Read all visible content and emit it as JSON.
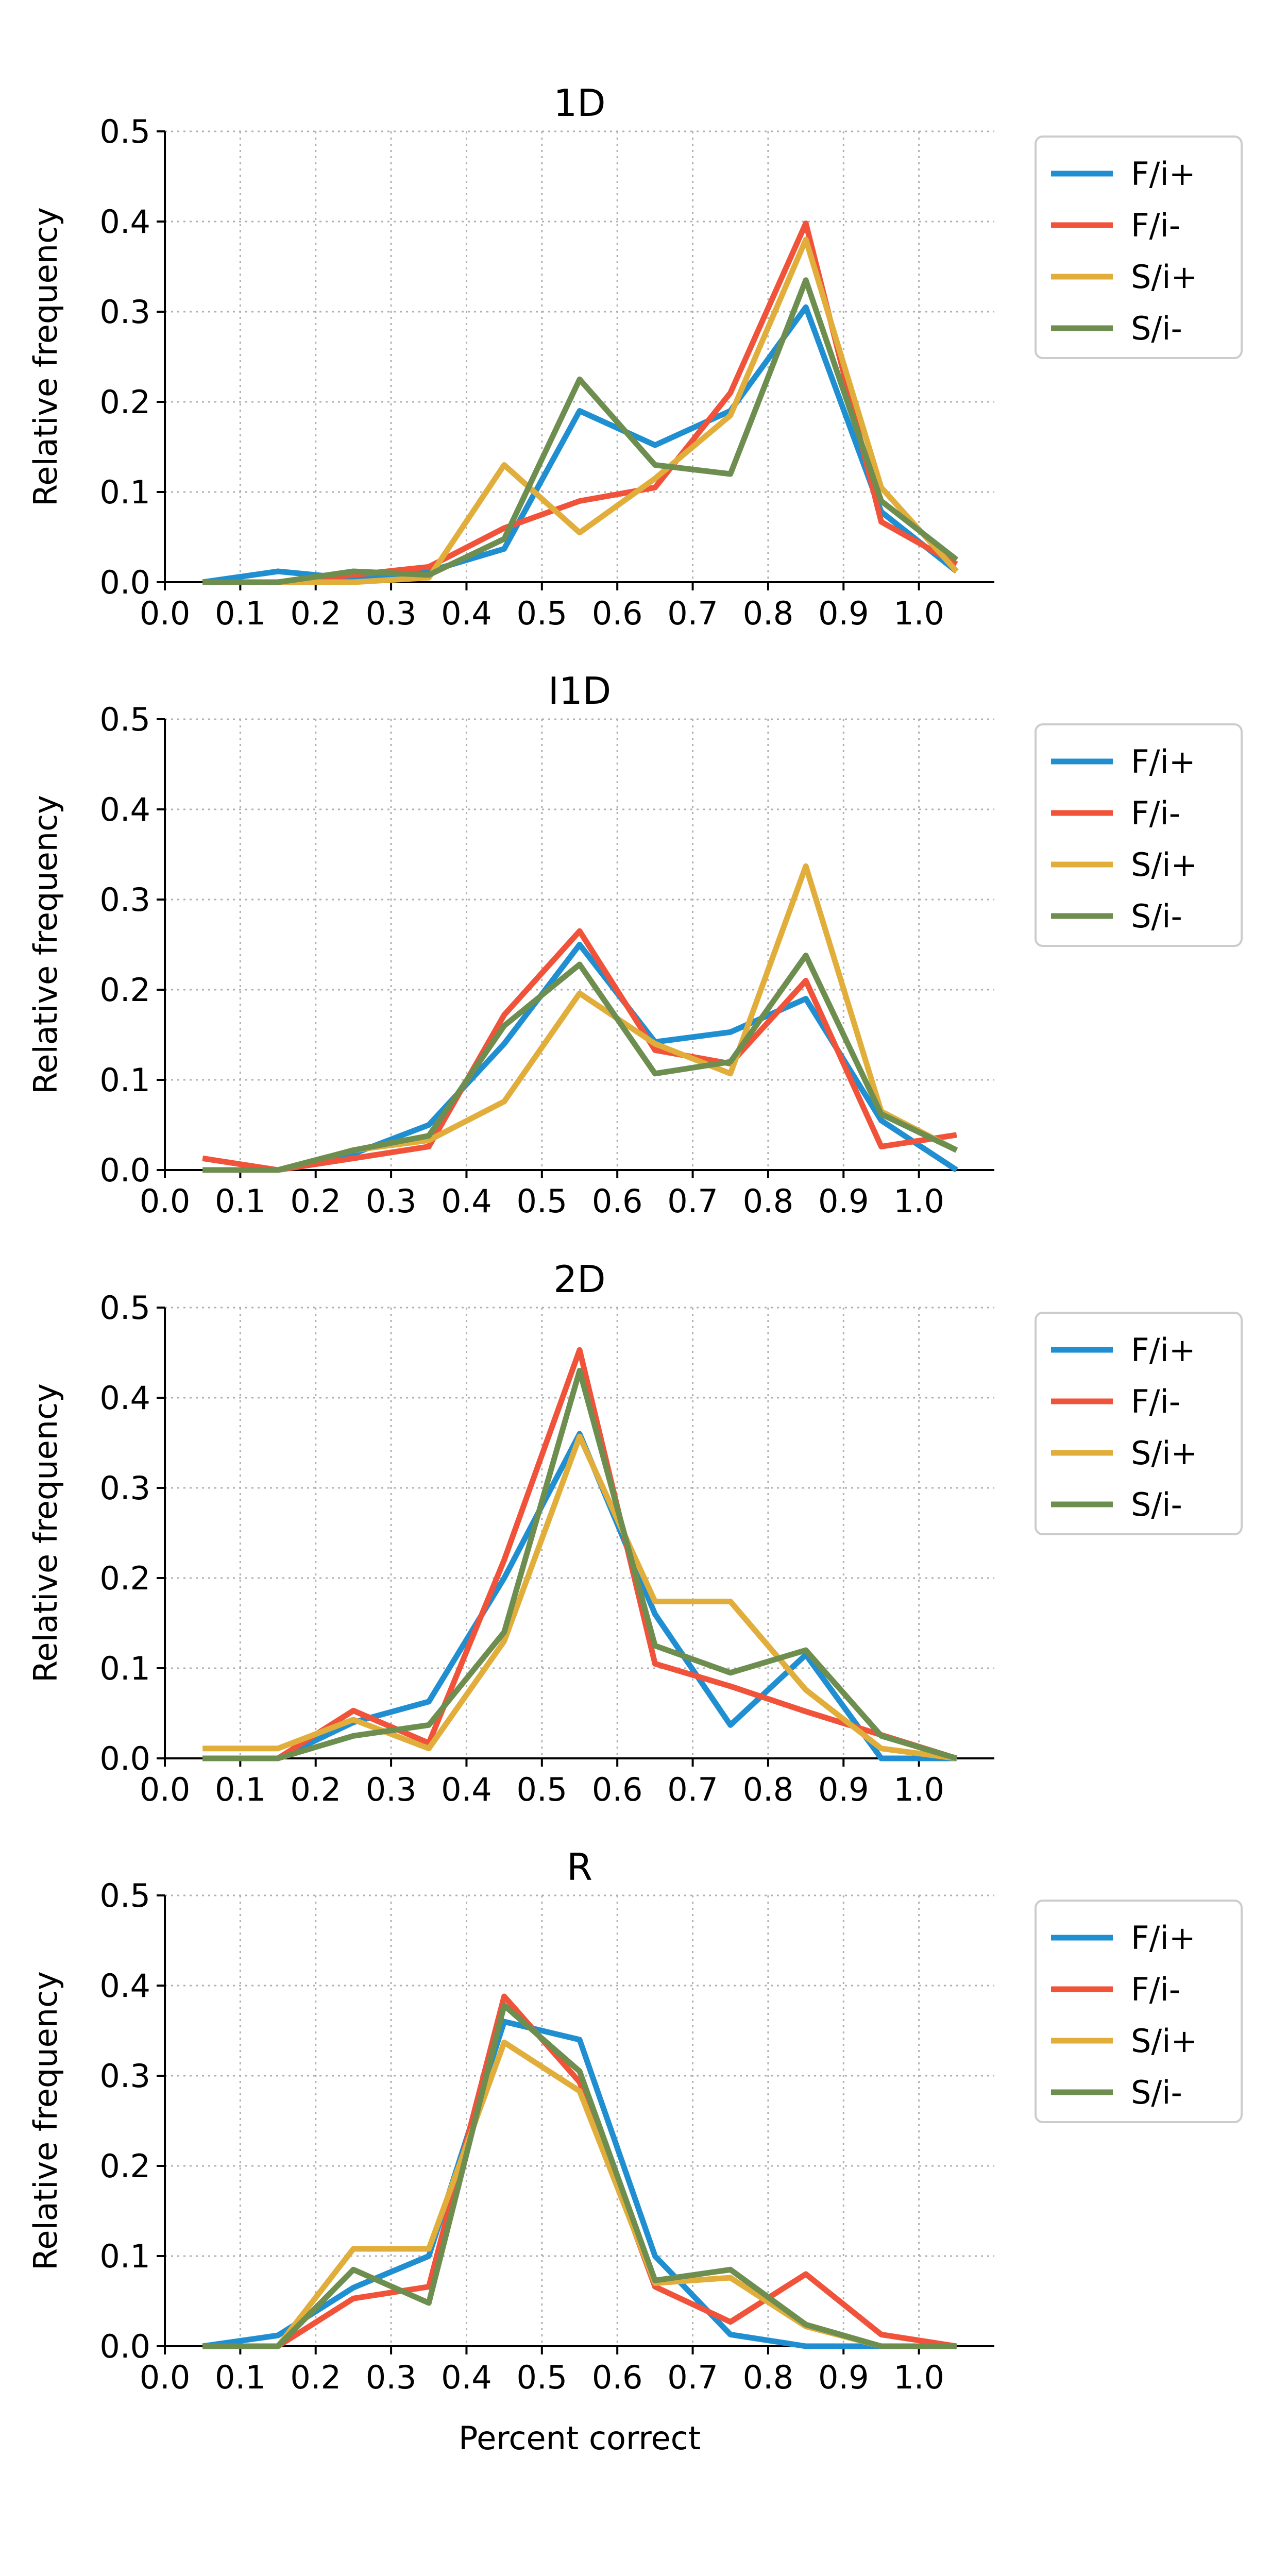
{
  "figure": {
    "xlabel": "Percent correct",
    "ylabel": "Relative frequency"
  },
  "legend_entries": [
    "F/i+",
    "F/i-",
    "S/i+",
    "S/i-"
  ],
  "colors": {
    "F/i+": "#1f8fd2",
    "F/i-": "#f0533a",
    "S/i+": "#e2ae3b",
    "S/i-": "#6e8e50",
    "grid": "#b0b0b0",
    "axis": "#000000"
  },
  "chart_data": [
    {
      "type": "line",
      "title": "1D",
      "xlabel": "",
      "ylabel": "Relative frequency",
      "xlim": [
        0.0,
        1.1
      ],
      "ylim": [
        0.0,
        0.5
      ],
      "xticks": [
        "0.0",
        "0.1",
        "0.2",
        "0.3",
        "0.4",
        "0.5",
        "0.6",
        "0.7",
        "0.8",
        "0.9",
        "1.0"
      ],
      "yticks": [
        "0.0",
        "0.1",
        "0.2",
        "0.3",
        "0.4",
        "0.5"
      ],
      "grid": true,
      "legend_placement": "outside-right",
      "x": [
        0.05,
        0.15,
        0.25,
        0.35,
        0.45,
        0.55,
        0.65,
        0.75,
        0.85,
        0.95,
        1.05
      ],
      "series": [
        {
          "name": "F/i+",
          "values": [
            0.0,
            0.012,
            0.004,
            0.012,
            0.037,
            0.19,
            0.152,
            0.19,
            0.305,
            0.078,
            0.012
          ]
        },
        {
          "name": "F/i-",
          "values": [
            0.0,
            0.0,
            0.008,
            0.017,
            0.06,
            0.09,
            0.105,
            0.21,
            0.398,
            0.067,
            0.02
          ]
        },
        {
          "name": "S/i+",
          "values": [
            0.0,
            0.0,
            0.0,
            0.005,
            0.13,
            0.055,
            0.115,
            0.185,
            0.38,
            0.105,
            0.012
          ]
        },
        {
          "name": "S/i-",
          "values": [
            0.0,
            0.0,
            0.012,
            0.008,
            0.048,
            0.225,
            0.13,
            0.12,
            0.335,
            0.09,
            0.025
          ]
        }
      ]
    },
    {
      "type": "line",
      "title": "I1D",
      "xlabel": "",
      "ylabel": "Relative frequency",
      "xlim": [
        0.0,
        1.1
      ],
      "ylim": [
        0.0,
        0.5
      ],
      "xticks": [
        "0.0",
        "0.1",
        "0.2",
        "0.3",
        "0.4",
        "0.5",
        "0.6",
        "0.7",
        "0.8",
        "0.9",
        "1.0"
      ],
      "yticks": [
        "0.0",
        "0.1",
        "0.2",
        "0.3",
        "0.4",
        "0.5"
      ],
      "grid": true,
      "legend_placement": "outside-right",
      "x": [
        0.05,
        0.15,
        0.25,
        0.35,
        0.45,
        0.55,
        0.65,
        0.75,
        0.85,
        0.95,
        1.05
      ],
      "series": [
        {
          "name": "F/i+",
          "values": [
            0.0,
            0.0,
            0.018,
            0.05,
            0.14,
            0.25,
            0.142,
            0.153,
            0.19,
            0.055,
            0.0
          ]
        },
        {
          "name": "F/i-",
          "values": [
            0.013,
            0.0,
            0.013,
            0.026,
            0.172,
            0.265,
            0.133,
            0.118,
            0.21,
            0.026,
            0.039
          ]
        },
        {
          "name": "S/i+",
          "values": [
            0.0,
            0.0,
            0.022,
            0.033,
            0.076,
            0.196,
            0.14,
            0.107,
            0.337,
            0.065,
            0.022
          ]
        },
        {
          "name": "S/i-",
          "values": [
            0.0,
            0.0,
            0.022,
            0.038,
            0.16,
            0.228,
            0.107,
            0.12,
            0.238,
            0.062,
            0.022
          ]
        }
      ]
    },
    {
      "type": "line",
      "title": "2D",
      "xlabel": "",
      "ylabel": "Relative frequency",
      "xlim": [
        0.0,
        1.1
      ],
      "ylim": [
        0.0,
        0.5
      ],
      "xticks": [
        "0.0",
        "0.1",
        "0.2",
        "0.3",
        "0.4",
        "0.5",
        "0.6",
        "0.7",
        "0.8",
        "0.9",
        "1.0"
      ],
      "yticks": [
        "0.0",
        "0.1",
        "0.2",
        "0.3",
        "0.4",
        "0.5"
      ],
      "grid": true,
      "legend_placement": "outside-right",
      "x": [
        0.05,
        0.15,
        0.25,
        0.35,
        0.45,
        0.55,
        0.65,
        0.75,
        0.85,
        0.95,
        1.05
      ],
      "series": [
        {
          "name": "F/i+",
          "values": [
            0.0,
            0.0,
            0.04,
            0.063,
            0.2,
            0.36,
            0.16,
            0.037,
            0.115,
            0.0,
            0.0
          ]
        },
        {
          "name": "F/i-",
          "values": [
            0.0,
            0.0,
            0.053,
            0.017,
            0.22,
            0.453,
            0.105,
            0.08,
            0.052,
            0.026,
            0.0
          ]
        },
        {
          "name": "S/i+",
          "values": [
            0.011,
            0.011,
            0.043,
            0.011,
            0.13,
            0.357,
            0.174,
            0.174,
            0.076,
            0.011,
            0.0
          ]
        },
        {
          "name": "S/i-",
          "values": [
            0.0,
            0.0,
            0.025,
            0.037,
            0.14,
            0.43,
            0.125,
            0.095,
            0.12,
            0.025,
            0.0
          ]
        }
      ]
    },
    {
      "type": "line",
      "title": "R",
      "xlabel": "Percent correct",
      "ylabel": "Relative frequency",
      "xlim": [
        0.0,
        1.1
      ],
      "ylim": [
        0.0,
        0.5
      ],
      "xticks": [
        "0.0",
        "0.1",
        "0.2",
        "0.3",
        "0.4",
        "0.5",
        "0.6",
        "0.7",
        "0.8",
        "0.9",
        "1.0"
      ],
      "yticks": [
        "0.0",
        "0.1",
        "0.2",
        "0.3",
        "0.4",
        "0.5"
      ],
      "grid": true,
      "legend_placement": "outside-right",
      "x": [
        0.05,
        0.15,
        0.25,
        0.35,
        0.45,
        0.55,
        0.65,
        0.75,
        0.85,
        0.95,
        1.05
      ],
      "series": [
        {
          "name": "F/i+",
          "values": [
            0.0,
            0.012,
            0.065,
            0.1,
            0.36,
            0.34,
            0.1,
            0.013,
            0.0,
            0.0,
            0.0
          ]
        },
        {
          "name": "F/i-",
          "values": [
            0.0,
            0.0,
            0.053,
            0.066,
            0.388,
            0.293,
            0.066,
            0.027,
            0.08,
            0.013,
            0.0
          ]
        },
        {
          "name": "S/i+",
          "values": [
            0.0,
            0.0,
            0.108,
            0.108,
            0.337,
            0.283,
            0.07,
            0.076,
            0.022,
            0.0,
            0.0
          ]
        },
        {
          "name": "S/i-",
          "values": [
            0.0,
            0.0,
            0.085,
            0.048,
            0.378,
            0.305,
            0.073,
            0.085,
            0.024,
            0.0,
            0.0
          ]
        }
      ]
    }
  ]
}
